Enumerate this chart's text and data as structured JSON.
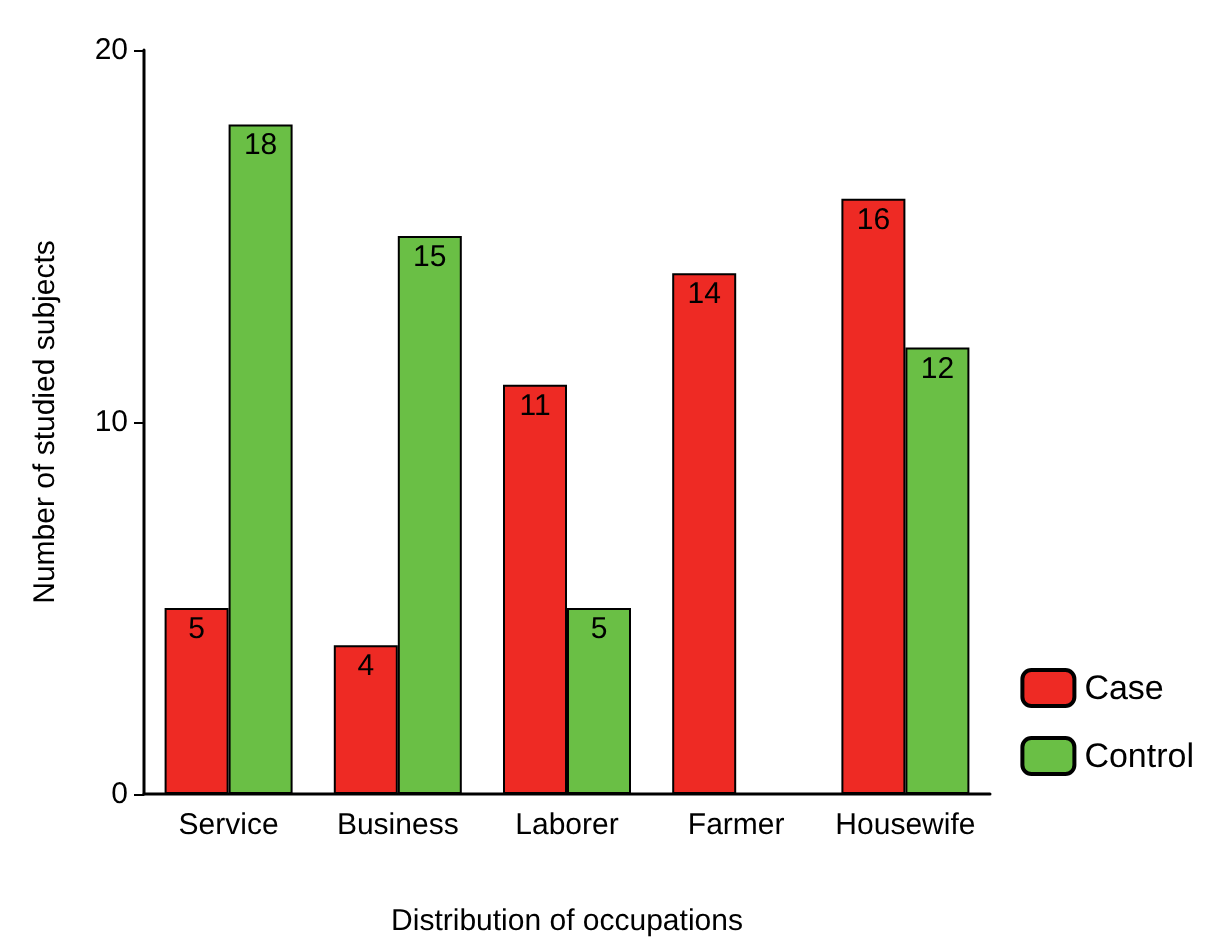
{
  "chart_data": {
    "type": "bar",
    "xlabel": "Distribution of occupations",
    "ylabel": "Number of studied subjects",
    "categories": [
      "Service",
      "Business",
      "Laborer",
      "Farmer",
      "Housewife"
    ],
    "series": [
      {
        "name": "Case",
        "color": "#ee2a24",
        "values": [
          5,
          4,
          11,
          14,
          16
        ]
      },
      {
        "name": "Control",
        "color": "#6abf45",
        "values": [
          18,
          15,
          5,
          null,
          12
        ]
      }
    ],
    "ylim": [
      0,
      20
    ],
    "yticks": [
      0,
      10,
      20
    ],
    "grid": false,
    "legend": "bottom right",
    "data_labels": true
  }
}
